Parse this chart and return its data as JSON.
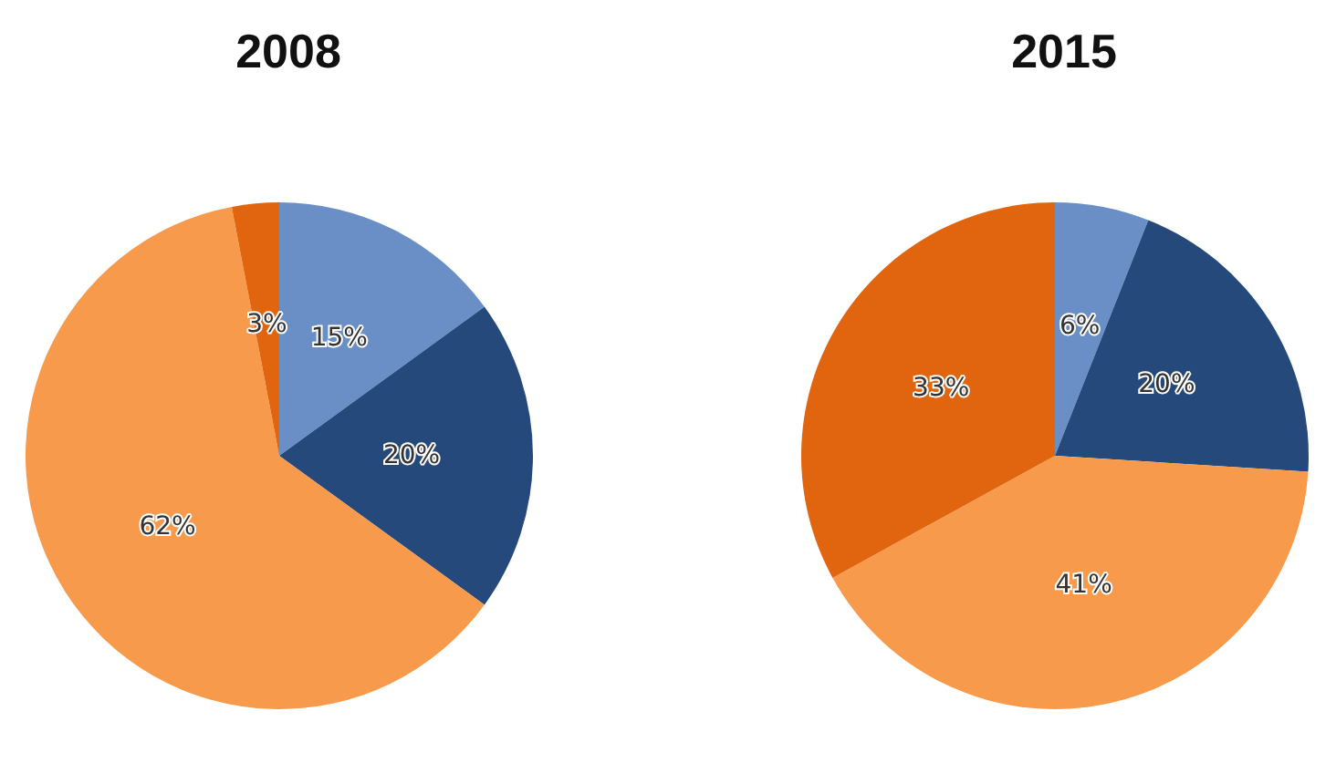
{
  "chart_data": [
    {
      "type": "pie",
      "title": "2008",
      "categories": [
        null,
        null,
        null,
        null
      ],
      "values": [
        15,
        20,
        62,
        3
      ],
      "colors": [
        "#6a8fc7",
        "#24497a",
        "#f79a4c",
        "#e0650e"
      ],
      "value_labels": [
        "15%",
        "20%",
        "62%",
        "3%"
      ]
    },
    {
      "type": "pie",
      "title": "2015",
      "categories": [
        null,
        null,
        null,
        null
      ],
      "values": [
        6,
        20,
        41,
        33
      ],
      "colors": [
        "#6a8fc7",
        "#24497a",
        "#f79a4c",
        "#e0650e"
      ],
      "value_labels": [
        "6%",
        "20%",
        "41%",
        "33%"
      ]
    }
  ]
}
